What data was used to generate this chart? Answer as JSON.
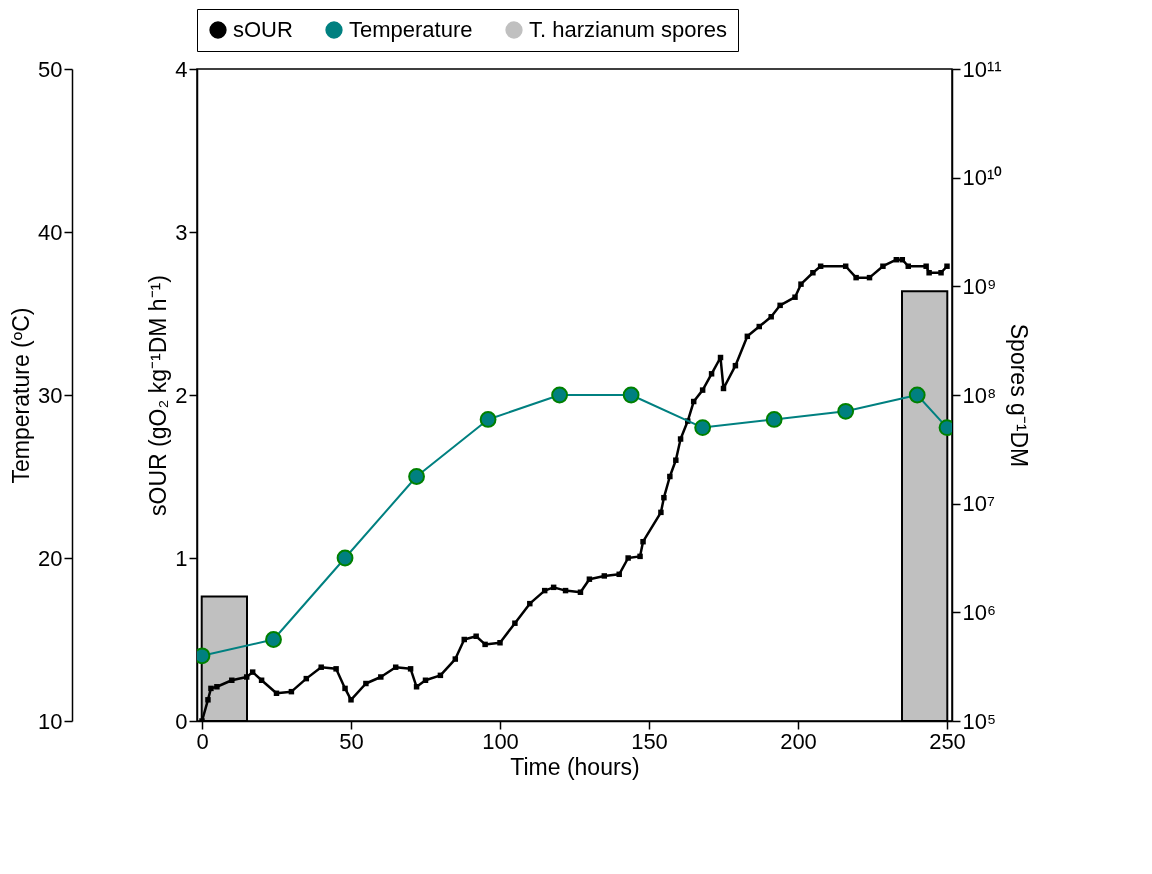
{
  "chart_data": {
    "type": "line",
    "xlabel": "Time (hours)",
    "ylabel": "sOUR (gO₂ kg⁻¹DM h⁻¹)",
    "y2label": "Spores g⁻¹DM",
    "y3label": "Temperature (ºC)",
    "xlim": [
      0,
      250
    ],
    "xticks": [
      0,
      50,
      100,
      150,
      200,
      250
    ],
    "ylim": [
      0,
      4
    ],
    "yticks": [
      0,
      1,
      2,
      3,
      4
    ],
    "y3lim": [
      10,
      50
    ],
    "y3ticks": [
      10,
      20,
      30,
      40,
      50
    ],
    "y2lim": [
      100000,
      100000000000
    ],
    "y2ticks": [
      {
        "value": 100000,
        "label": "10⁵"
      },
      {
        "value": 1000000,
        "label": "10⁶"
      },
      {
        "value": 10000000,
        "label": "10⁷"
      },
      {
        "value": 100000000,
        "label": "10⁸"
      },
      {
        "value": 1000000000,
        "label": "10⁹"
      },
      {
        "value": 10000000000,
        "label": "10¹⁰"
      },
      {
        "value": 100000000000,
        "label": "10¹¹"
      }
    ],
    "log": "y2",
    "grid": false,
    "legend": "top",
    "series": [
      {
        "name": "sOUR",
        "marker": "square",
        "color": "#000000",
        "axis": "y",
        "x": [
          0,
          2,
          3,
          5,
          10,
          15,
          17,
          20,
          25,
          30,
          35,
          40,
          45,
          48,
          50,
          55,
          60,
          65,
          70,
          72,
          75,
          80,
          85,
          88,
          92,
          95,
          100,
          105,
          110,
          115,
          118,
          122,
          127,
          130,
          135,
          140,
          143,
          147,
          148,
          154,
          155,
          157,
          159,
          160.6,
          163,
          165,
          168,
          171,
          174,
          175,
          179,
          183,
          187,
          191,
          194,
          199,
          201,
          205,
          207.6,
          216,
          219.5,
          224,
          228.5,
          233,
          235,
          237,
          243,
          244,
          248,
          250
        ],
        "values": [
          0,
          0.13,
          0.2,
          0.21,
          0.25,
          0.27,
          0.3,
          0.25,
          0.17,
          0.18,
          0.26,
          0.33,
          0.32,
          0.2,
          0.13,
          0.23,
          0.27,
          0.33,
          0.32,
          0.21,
          0.25,
          0.28,
          0.38,
          0.5,
          0.52,
          0.47,
          0.48,
          0.6,
          0.72,
          0.8,
          0.82,
          0.8,
          0.79,
          0.87,
          0.89,
          0.9,
          1.0,
          1.01,
          1.1,
          1.28,
          1.37,
          1.5,
          1.6,
          1.73,
          1.84,
          1.96,
          2.03,
          2.13,
          2.23,
          2.04,
          2.18,
          2.36,
          2.42,
          2.48,
          2.55,
          2.6,
          2.68,
          2.75,
          2.79,
          2.79,
          2.72,
          2.72,
          2.79,
          2.83,
          2.83,
          2.79,
          2.79,
          2.75,
          2.75,
          2.79
        ]
      },
      {
        "name": "Temperature",
        "type": "line",
        "marker": "circle",
        "color": "#008080",
        "axis": "y3",
        "x": [
          0,
          24,
          48,
          72,
          96,
          120,
          144,
          168,
          192,
          216,
          240,
          250
        ],
        "values": [
          14,
          15,
          20,
          25,
          28.5,
          30,
          30,
          28,
          28.5,
          29,
          30,
          28
        ]
      },
      {
        "name": "T. harzianum spores",
        "type": "bar",
        "color": "#c0c0c0",
        "axis": "y2",
        "x": [
          7.5,
          242.5
        ],
        "values": [
          1400000,
          900000000
        ]
      }
    ]
  }
}
